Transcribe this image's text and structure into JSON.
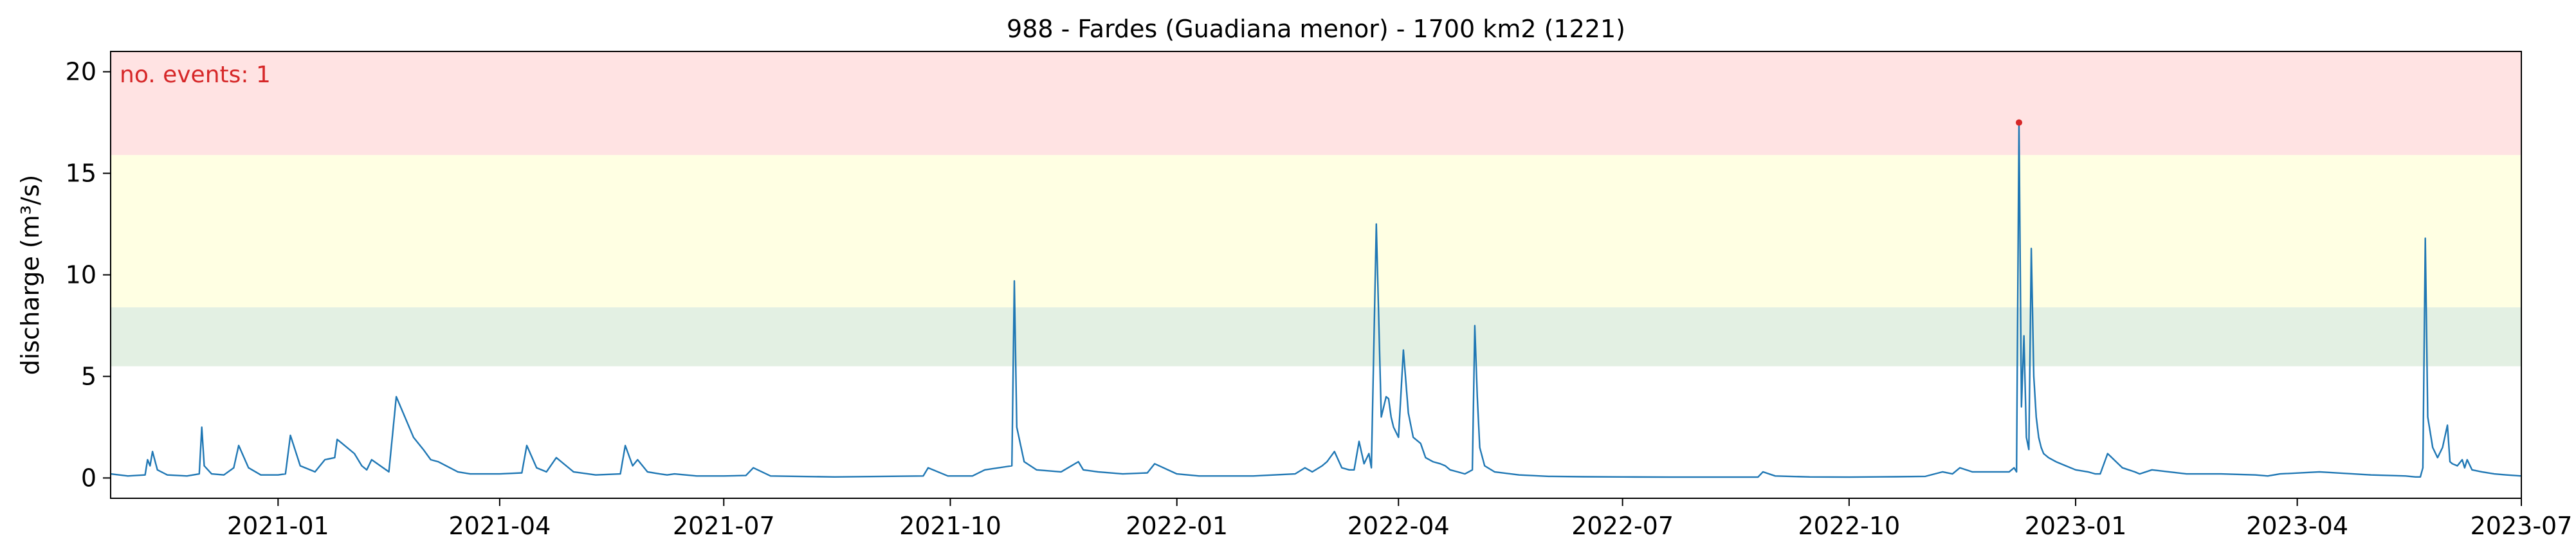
{
  "chart_data": {
    "type": "line",
    "title": "988 - Fardes (Guadiana menor) - 1700 km2 (1221)",
    "xlabel": "",
    "ylabel": "discharge (m³/s)",
    "xlim": [
      "2020-10-25",
      "2023-07-01"
    ],
    "ylim": [
      -1,
      21
    ],
    "xticks": [
      "2021-01",
      "2021-04",
      "2021-07",
      "2021-10",
      "2022-01",
      "2022-04",
      "2022-07",
      "2022-10",
      "2023-01",
      "2023-04",
      "2023-07"
    ],
    "yticks": [
      0,
      5,
      10,
      15,
      20
    ],
    "grid": false,
    "threshold_bands": [
      {
        "from": 5.5,
        "to": 8.4,
        "color": "#e3f0e3"
      },
      {
        "from": 8.4,
        "to": 15.9,
        "color": "#ffffe3"
      },
      {
        "from": 15.9,
        "to": 21,
        "color": "#ffe3e3"
      }
    ],
    "annotation": {
      "text": "no. events: 1",
      "color": "#d62728"
    },
    "events": [
      {
        "date": "2022-12-09",
        "value": 17.5,
        "color": "#d62728"
      }
    ],
    "series": [
      {
        "color": "#1f77b4",
        "x": [
          "2020-10-25",
          "2020-11-01",
          "2020-11-08",
          "2020-11-09",
          "2020-11-10",
          "2020-11-11",
          "2020-11-13",
          "2020-11-17",
          "2020-11-25",
          "2020-11-30",
          "2020-12-01",
          "2020-12-02",
          "2020-12-05",
          "2020-12-10",
          "2020-12-14",
          "2020-12-16",
          "2020-12-20",
          "2020-12-25",
          "2021-01-01",
          "2021-01-04",
          "2021-01-06",
          "2021-01-10",
          "2021-01-16",
          "2021-01-20",
          "2021-01-24",
          "2021-01-25",
          "2021-01-27",
          "2021-02-01",
          "2021-02-04",
          "2021-02-06",
          "2021-02-08",
          "2021-02-15",
          "2021-02-18",
          "2021-02-25",
          "2021-03-01",
          "2021-03-04",
          "2021-03-07",
          "2021-03-15",
          "2021-03-20",
          "2021-04-01",
          "2021-04-10",
          "2021-04-12",
          "2021-04-16",
          "2021-04-20",
          "2021-04-24",
          "2021-05-01",
          "2021-05-10",
          "2021-05-20",
          "2021-05-22",
          "2021-05-25",
          "2021-05-27",
          "2021-05-31",
          "2021-06-05",
          "2021-06-08",
          "2021-06-11",
          "2021-06-20",
          "2021-07-01",
          "2021-07-10",
          "2021-07-13",
          "2021-07-20",
          "2021-08-15",
          "2021-09-20",
          "2021-09-22",
          "2021-09-30",
          "2021-10-10",
          "2021-10-15",
          "2021-10-26",
          "2021-10-27",
          "2021-10-28",
          "2021-10-31",
          "2021-11-05",
          "2021-11-15",
          "2021-11-22",
          "2021-11-24",
          "2021-11-30",
          "2021-12-10",
          "2021-12-20",
          "2021-12-23",
          "2022-01-01",
          "2022-01-10",
          "2022-02-01",
          "2022-02-18",
          "2022-02-22",
          "2022-02-25",
          "2022-03-01",
          "2022-03-03",
          "2022-03-06",
          "2022-03-09",
          "2022-03-12",
          "2022-03-14",
          "2022-03-16",
          "2022-03-18",
          "2022-03-20",
          "2022-03-21",
          "2022-03-23",
          "2022-03-25",
          "2022-03-26",
          "2022-03-27",
          "2022-03-28",
          "2022-03-29",
          "2022-03-30",
          "2022-04-01",
          "2022-04-03",
          "2022-04-05",
          "2022-04-07",
          "2022-04-08",
          "2022-04-10",
          "2022-04-12",
          "2022-04-15",
          "2022-04-18",
          "2022-04-20",
          "2022-04-22",
          "2022-04-25",
          "2022-04-28",
          "2022-05-01",
          "2022-05-02",
          "2022-05-03",
          "2022-05-04",
          "2022-05-06",
          "2022-05-10",
          "2022-05-20",
          "2022-06-01",
          "2022-06-15",
          "2022-07-01",
          "2022-07-20",
          "2022-08-10",
          "2022-08-25",
          "2022-08-27",
          "2022-09-01",
          "2022-09-15",
          "2022-10-01",
          "2022-10-20",
          "2022-11-01",
          "2022-11-08",
          "2022-11-12",
          "2022-11-15",
          "2022-11-20",
          "2022-11-25",
          "2022-12-05",
          "2022-12-07",
          "2022-12-08",
          "2022-12-09",
          "2022-12-10",
          "2022-12-11",
          "2022-12-12",
          "2022-12-13",
          "2022-12-14",
          "2022-12-15",
          "2022-12-16",
          "2022-12-17",
          "2022-12-18",
          "2022-12-19",
          "2022-12-21",
          "2022-12-24",
          "2022-12-28",
          "2023-01-01",
          "2023-01-06",
          "2023-01-09",
          "2023-01-11",
          "2023-01-14",
          "2023-01-20",
          "2023-01-25",
          "2023-01-27",
          "2023-02-01",
          "2023-02-15",
          "2023-03-01",
          "2023-03-15",
          "2023-03-20",
          "2023-03-25",
          "2023-04-10",
          "2023-05-01",
          "2023-05-15",
          "2023-05-19",
          "2023-05-21",
          "2023-05-22",
          "2023-05-23",
          "2023-05-24",
          "2023-05-26",
          "2023-05-28",
          "2023-05-30",
          "2023-06-01",
          "2023-06-02",
          "2023-06-03",
          "2023-06-05",
          "2023-06-07",
          "2023-06-08",
          "2023-06-09",
          "2023-06-11",
          "2023-06-15",
          "2023-06-20",
          "2023-06-25",
          "2023-07-01"
        ],
        "y": [
          0.2,
          0.1,
          0.15,
          0.9,
          0.6,
          1.3,
          0.4,
          0.15,
          0.1,
          0.2,
          2.5,
          0.6,
          0.2,
          0.15,
          0.5,
          1.6,
          0.5,
          0.15,
          0.15,
          0.2,
          2.1,
          0.6,
          0.3,
          0.9,
          1.0,
          1.9,
          1.7,
          1.2,
          0.6,
          0.4,
          0.9,
          0.3,
          4.0,
          2.0,
          1.4,
          0.9,
          0.8,
          0.3,
          0.2,
          0.2,
          0.25,
          1.6,
          0.5,
          0.3,
          1.0,
          0.3,
          0.15,
          0.2,
          1.6,
          0.6,
          0.9,
          0.3,
          0.2,
          0.15,
          0.2,
          0.1,
          0.1,
          0.12,
          0.5,
          0.1,
          0.05,
          0.1,
          0.5,
          0.1,
          0.1,
          0.4,
          0.6,
          9.7,
          2.5,
          0.8,
          0.4,
          0.3,
          0.8,
          0.4,
          0.3,
          0.2,
          0.25,
          0.7,
          0.2,
          0.1,
          0.1,
          0.2,
          0.5,
          0.3,
          0.6,
          0.8,
          1.3,
          0.5,
          0.4,
          0.4,
          1.8,
          0.7,
          1.2,
          0.5,
          12.5,
          3.0,
          3.5,
          4.0,
          3.9,
          3.0,
          2.5,
          2.0,
          6.3,
          3.2,
          2.0,
          1.9,
          1.7,
          1.0,
          0.8,
          0.7,
          0.6,
          0.4,
          0.3,
          0.2,
          0.4,
          7.5,
          4.0,
          1.5,
          0.6,
          0.3,
          0.15,
          0.08,
          0.06,
          0.05,
          0.04,
          0.04,
          0.04,
          0.3,
          0.1,
          0.05,
          0.04,
          0.06,
          0.08,
          0.3,
          0.2,
          0.5,
          0.3,
          0.3,
          0.3,
          0.5,
          0.3,
          17.5,
          3.5,
          7.0,
          2.0,
          1.4,
          11.3,
          5.0,
          3.0,
          2.0,
          1.5,
          1.2,
          1.0,
          0.8,
          0.6,
          0.4,
          0.3,
          0.2,
          0.2,
          1.2,
          0.5,
          0.3,
          0.2,
          0.4,
          0.2,
          0.2,
          0.15,
          0.1,
          0.2,
          0.3,
          0.15,
          0.1,
          0.05,
          0.05,
          0.5,
          11.8,
          3.0,
          1.5,
          1.0,
          1.5,
          2.6,
          0.8,
          0.7,
          0.6,
          0.9,
          0.5,
          0.9,
          0.4,
          0.3,
          0.2,
          0.15,
          0.1
        ]
      }
    ]
  }
}
